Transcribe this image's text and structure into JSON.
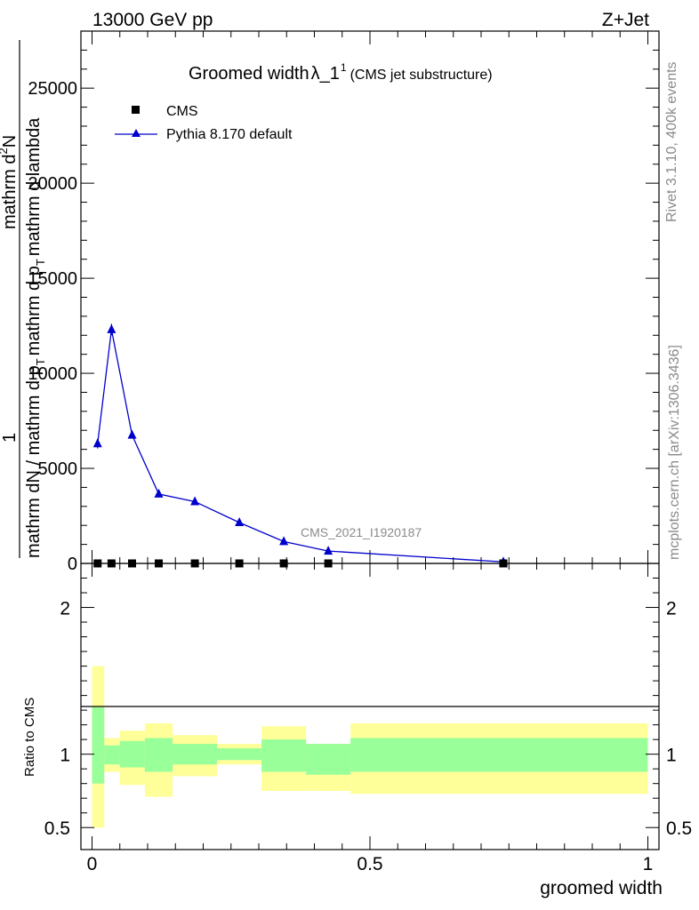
{
  "header": {
    "energy": "13000 GeV pp",
    "process": "Z+Jet"
  },
  "side": {
    "rivet": "Rivet 3.1.10,  400k events",
    "mcplots": "mcplots.cern.ch [arXiv:1306.3436]"
  },
  "chart_data": [
    {
      "type": "line",
      "title": "Groomed width",
      "title_symbol": "λ_1",
      "title_superscript": "1",
      "title_note": "(CMS jet substructure)",
      "watermark": "CMS_2021_I1920187",
      "ylabel_parts": [
        "1",
        "mathrm dN / mathrm d p",
        "T",
        "mathrm d p",
        "T",
        "mathrm d lambda",
        "mathrm d",
        "2",
        "N"
      ],
      "xlim": [
        -0.02,
        1.02
      ],
      "ylim": [
        0,
        28000
      ],
      "yticks": [
        0,
        5000,
        10000,
        15000,
        20000,
        25000
      ],
      "ytick_labels": [
        "0",
        "5000",
        "10000",
        "15000",
        "20000",
        "25000"
      ],
      "legend": {
        "placement": "top-left",
        "entries": [
          "CMS",
          "Pythia 8.170 default"
        ]
      },
      "series": [
        {
          "name": "CMS",
          "marker": "square",
          "color": "#000000",
          "x": [
            0.01,
            0.035,
            0.072,
            0.12,
            0.185,
            0.265,
            0.345,
            0.425,
            0.74
          ],
          "y": [
            0,
            0,
            0,
            0,
            0,
            0,
            0,
            0,
            0
          ]
        },
        {
          "name": "Pythia 8.170 default",
          "marker": "triangle",
          "color": "#0000cc",
          "x": [
            0.01,
            0.035,
            0.072,
            0.12,
            0.185,
            0.265,
            0.345,
            0.425,
            0.74
          ],
          "y": [
            6300,
            12300,
            6750,
            3650,
            3250,
            2150,
            1150,
            650,
            80
          ],
          "err": [
            250,
            300,
            150,
            80,
            60,
            50,
            40,
            30,
            10
          ]
        }
      ]
    },
    {
      "type": "area",
      "ylabel": "Ratio to CMS",
      "xlabel": "groomed width",
      "xlim": [
        -0.02,
        1.02
      ],
      "ylim": [
        0.35,
        2.3
      ],
      "yticks": [
        0.5,
        1,
        2
      ],
      "ytick_labels": [
        "0.5",
        "1",
        "2"
      ],
      "xticks": [
        0,
        0.5,
        1
      ],
      "xtick_labels": [
        "0",
        "0.5",
        "1"
      ],
      "bands": [
        {
          "x0": 0.0,
          "x1": 0.022,
          "inner": [
            0.8,
            1.32
          ],
          "outer": [
            0.5,
            1.6
          ]
        },
        {
          "x0": 0.022,
          "x1": 0.05,
          "inner": [
            0.93,
            1.06
          ],
          "outer": [
            0.88,
            1.11
          ]
        },
        {
          "x0": 0.05,
          "x1": 0.095,
          "inner": [
            0.91,
            1.09
          ],
          "outer": [
            0.79,
            1.16
          ]
        },
        {
          "x0": 0.095,
          "x1": 0.145,
          "inner": [
            0.88,
            1.11
          ],
          "outer": [
            0.71,
            1.21
          ]
        },
        {
          "x0": 0.145,
          "x1": 0.225,
          "inner": [
            0.93,
            1.07
          ],
          "outer": [
            0.85,
            1.13
          ]
        },
        {
          "x0": 0.225,
          "x1": 0.305,
          "inner": [
            0.96,
            1.04
          ],
          "outer": [
            0.93,
            1.07
          ]
        },
        {
          "x0": 0.305,
          "x1": 0.385,
          "inner": [
            0.88,
            1.1
          ],
          "outer": [
            0.75,
            1.19
          ]
        },
        {
          "x0": 0.385,
          "x1": 0.465,
          "inner": [
            0.86,
            1.07
          ],
          "outer": [
            0.75,
            1.07
          ]
        },
        {
          "x0": 0.465,
          "x1": 1.0,
          "inner": [
            0.88,
            1.11
          ],
          "outer": [
            0.73,
            1.21
          ]
        }
      ],
      "colors": {
        "inner": "#99ff99",
        "outer": "#ffff99"
      }
    }
  ]
}
